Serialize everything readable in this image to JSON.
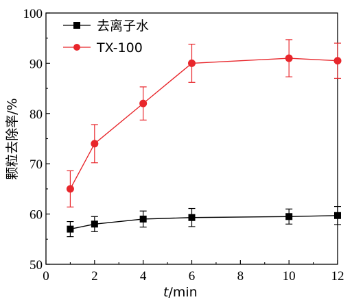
{
  "chart_data": {
    "type": "line",
    "title": "",
    "xlabel_var": "t",
    "xlabel_unit": "/min",
    "ylabel": "颗粒去除率/%",
    "xlim": [
      0,
      12
    ],
    "ylim": [
      50,
      100
    ],
    "x_ticks": [
      0,
      2,
      4,
      6,
      8,
      10,
      12
    ],
    "y_ticks": [
      50,
      60,
      70,
      80,
      90,
      100
    ],
    "grid": false,
    "legend_position": "top-left",
    "series": [
      {
        "name": "去离子水",
        "color": "#000000",
        "marker": "square",
        "x": [
          1,
          2,
          4,
          6,
          10,
          12
        ],
        "y": [
          57.0,
          58.0,
          59.0,
          59.3,
          59.5,
          59.7
        ],
        "err": [
          1.5,
          1.5,
          1.6,
          1.8,
          1.5,
          1.8
        ]
      },
      {
        "name": "TX-100",
        "color": "#e8262b",
        "marker": "circle",
        "x": [
          1,
          2,
          4,
          6,
          10,
          12
        ],
        "y": [
          65.0,
          74.0,
          82.0,
          90.0,
          91.0,
          90.5
        ],
        "err": [
          3.6,
          3.8,
          3.3,
          3.8,
          3.7,
          3.5
        ]
      }
    ]
  }
}
